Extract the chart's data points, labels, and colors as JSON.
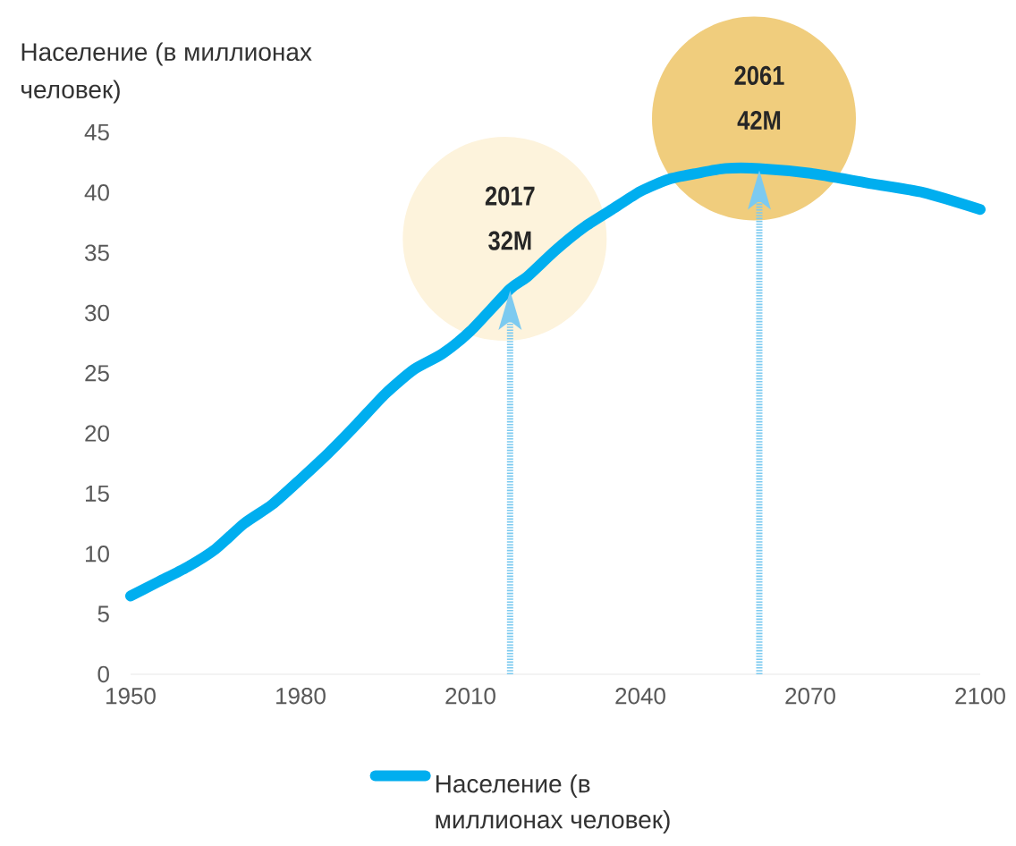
{
  "chart_data": {
    "type": "line",
    "ylabel": "Население (в миллионах человек)",
    "x": [
      1950,
      1955,
      1960,
      1965,
      1970,
      1975,
      1980,
      1985,
      1990,
      1995,
      2000,
      2005,
      2010,
      2017,
      2020,
      2025,
      2030,
      2035,
      2040,
      2045,
      2050,
      2055,
      2061,
      2070,
      2080,
      2090,
      2100
    ],
    "series": [
      {
        "name": "Население (в миллионах человек)",
        "color": "#00aeef",
        "values": [
          6.5,
          7.7,
          8.9,
          10.4,
          12.5,
          14.1,
          16.2,
          18.4,
          20.8,
          23.3,
          25.3,
          26.6,
          28.5,
          32,
          33,
          35.2,
          37.1,
          38.6,
          40.1,
          41.1,
          41.6,
          42,
          42,
          41.6,
          40.8,
          40,
          38.6
        ]
      }
    ],
    "xlim": [
      1950,
      2100
    ],
    "xticks": [
      1950,
      1980,
      2010,
      2040,
      2070,
      2100
    ],
    "ylim": [
      0,
      45
    ],
    "yticks": [
      0,
      5,
      10,
      15,
      20,
      25,
      30,
      35,
      40,
      45
    ],
    "annotations": [
      "2017",
      "32M",
      "2061",
      "42M"
    ],
    "ref_lines": [
      {
        "axis": "x",
        "value": 2017,
        "color": "#7ccaf0",
        "line_style": "dotted"
      },
      {
        "axis": "x",
        "value": 2061,
        "color": "#7ccaf0",
        "line_style": "dotted"
      }
    ],
    "legend": "bottom",
    "grid": false,
    "marker": "none",
    "line_style": "solid"
  }
}
